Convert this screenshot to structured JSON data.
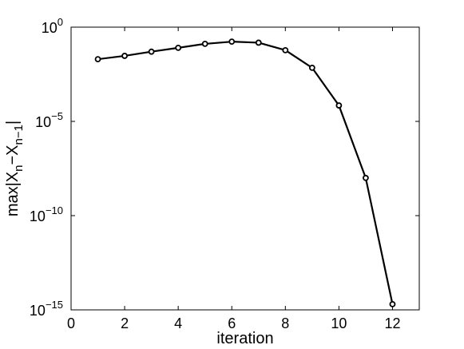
{
  "chart_data": {
    "type": "line",
    "title": "",
    "xlabel": "iteration",
    "ylabel": {
      "prefix": "max|X",
      "sub1": "n",
      "middle": "−X",
      "sub2": "n−1",
      "suffix": "|"
    },
    "xscale": "linear",
    "yscale": "log",
    "xlim": [
      0,
      13
    ],
    "ylim": [
      1e-15,
      1
    ],
    "xticks": [
      0,
      2,
      4,
      6,
      8,
      10,
      12
    ],
    "xtick_labels": [
      "0",
      "2",
      "4",
      "6",
      "8",
      "10",
      "12"
    ],
    "yticks": [
      1e-15,
      1e-10,
      1e-05,
      1
    ],
    "ytick_labels": [
      {
        "base": "10",
        "exp": "−15"
      },
      {
        "base": "10",
        "exp": "−10"
      },
      {
        "base": "10",
        "exp": "−5"
      },
      {
        "base": "10",
        "exp": "0"
      }
    ],
    "grid": false,
    "legend": "none",
    "colors": {
      "line": "#000000",
      "axes": "#000000"
    },
    "series": [
      {
        "x": [
          1,
          2,
          3,
          4,
          5,
          6,
          7,
          8,
          9,
          10,
          11,
          12
        ],
        "y": [
          0.02,
          0.03,
          0.05,
          0.08,
          0.13,
          0.17,
          0.15,
          0.06,
          0.007,
          7e-05,
          1e-08,
          2e-15
        ],
        "marker": "open-circle"
      }
    ]
  }
}
